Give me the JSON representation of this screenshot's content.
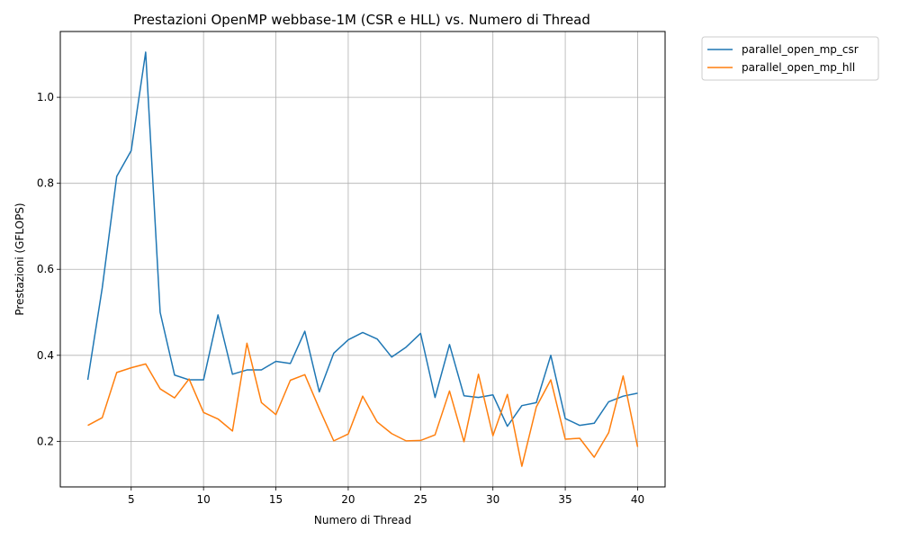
{
  "chart_data": {
    "type": "line",
    "title": "Prestazioni OpenMP webbase-1M (CSR e HLL) vs. Numero di Thread",
    "xlabel": "Numero di Thread",
    "ylabel": "Prestazioni (GFLOPS)",
    "xlim": [
      0.1,
      41.9
    ],
    "ylim": [
      0.094,
      1.153
    ],
    "xticks": [
      5,
      10,
      15,
      20,
      25,
      30,
      35,
      40
    ],
    "yticks": [
      0.2,
      0.4,
      0.6,
      0.8,
      1.0
    ],
    "ytick_labels": [
      "0.2",
      "0.4",
      "0.6",
      "0.8",
      "1.0"
    ],
    "grid": true,
    "legend_position": "outside-upper-right",
    "x": [
      2,
      3,
      4,
      5,
      6,
      7,
      8,
      9,
      10,
      11,
      12,
      13,
      14,
      15,
      16,
      17,
      18,
      19,
      20,
      21,
      22,
      23,
      24,
      25,
      26,
      27,
      28,
      29,
      30,
      31,
      32,
      33,
      34,
      35,
      36,
      37,
      38,
      39,
      40
    ],
    "series": [
      {
        "name": "parallel_open_mp_csr",
        "color": "#1f77b4",
        "values": [
          0.343,
          0.557,
          0.816,
          0.876,
          1.105,
          0.5,
          0.354,
          0.343,
          0.343,
          0.494,
          0.356,
          0.366,
          0.366,
          0.386,
          0.381,
          0.456,
          0.315,
          0.405,
          0.436,
          0.453,
          0.438,
          0.396,
          0.419,
          0.451,
          0.302,
          0.425,
          0.306,
          0.302,
          0.308,
          0.235,
          0.283,
          0.29,
          0.4,
          0.253,
          0.237,
          0.242,
          0.292,
          0.305,
          0.312
        ]
      },
      {
        "name": "parallel_open_mp_hll",
        "color": "#ff7f0e",
        "values": [
          0.237,
          0.255,
          0.36,
          0.371,
          0.38,
          0.322,
          0.301,
          0.345,
          0.267,
          0.252,
          0.224,
          0.428,
          0.29,
          0.262,
          0.342,
          0.355,
          0.276,
          0.201,
          0.217,
          0.305,
          0.245,
          0.218,
          0.201,
          0.202,
          0.215,
          0.317,
          0.199,
          0.356,
          0.213,
          0.309,
          0.142,
          0.28,
          0.343,
          0.205,
          0.207,
          0.163,
          0.22,
          0.352,
          0.187
        ]
      }
    ]
  }
}
